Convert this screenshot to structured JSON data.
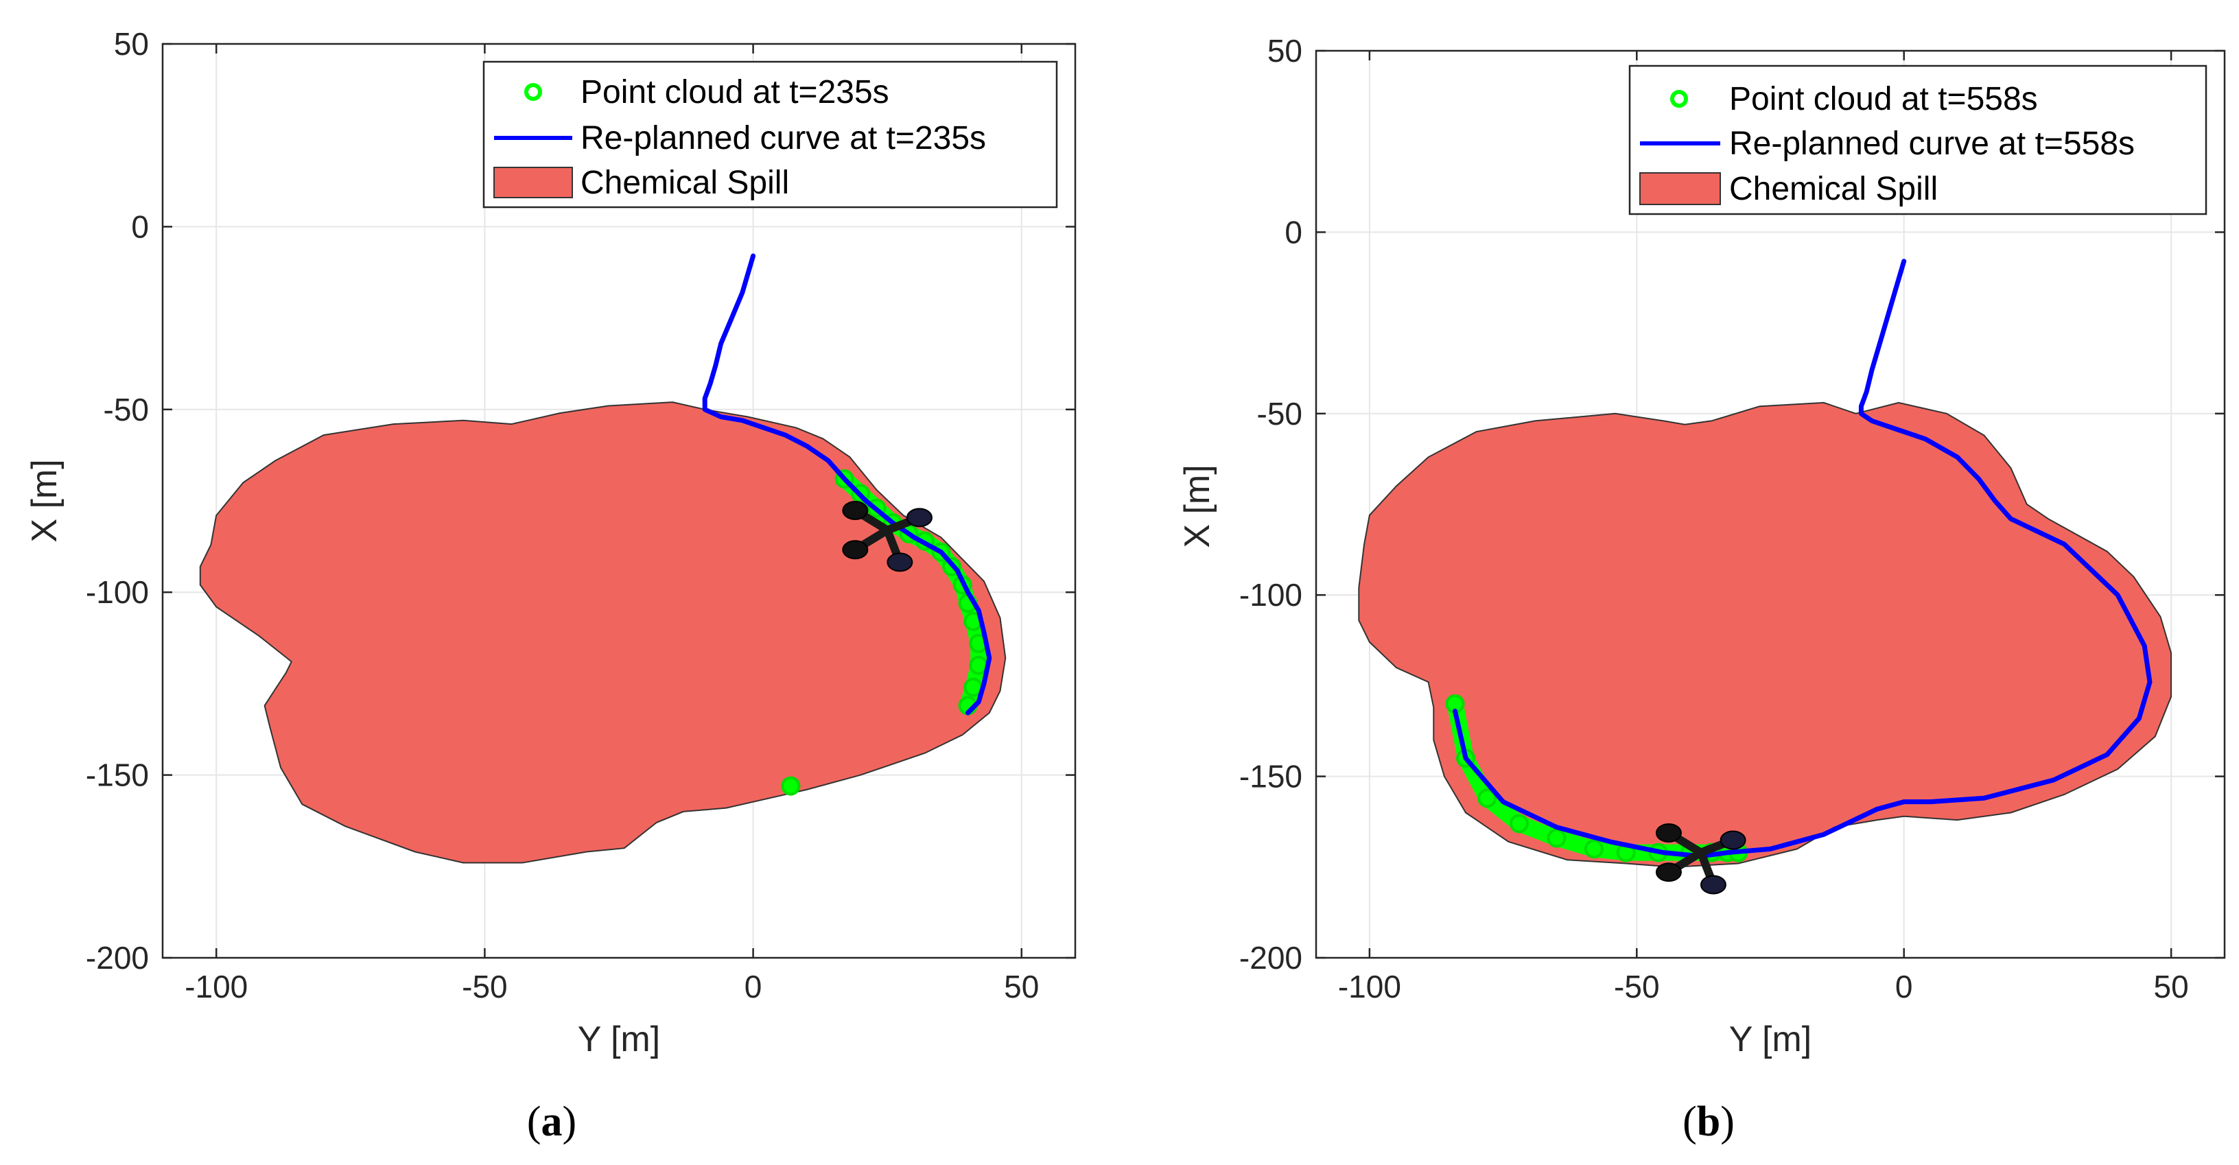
{
  "chart_data": [
    {
      "type": "line",
      "panel_label": "a",
      "xlabel": "Y [m]",
      "ylabel": "X [m]",
      "xlim": [
        -110,
        60
      ],
      "ylim": [
        -200,
        50
      ],
      "xticks": [
        -100,
        -50,
        0,
        50
      ],
      "yticks": [
        50,
        0,
        -50,
        -100,
        -150,
        -200
      ],
      "xtick_labels": [
        "-100",
        "-50",
        "0",
        "50"
      ],
      "ytick_labels": [
        "50",
        "0",
        "-50",
        "-100",
        "-150",
        "-200"
      ],
      "grid": true,
      "legend_position": "top-right",
      "legend": [
        {
          "label": "Point cloud at t=235s",
          "kind": "marker",
          "color": "#00ff00"
        },
        {
          "label": "Re-planned curve at t=235s",
          "kind": "line",
          "color": "#0000ff"
        },
        {
          "label": "Chemical Spill",
          "kind": "patch",
          "color": "#f0665e"
        }
      ],
      "spill_boundary": [
        [
          -9,
          -50
        ],
        [
          -1,
          -52
        ],
        [
          8,
          -55
        ],
        [
          13,
          -58
        ],
        [
          18,
          -63
        ],
        [
          23,
          -72
        ],
        [
          28,
          -79
        ],
        [
          35,
          -85
        ],
        [
          39,
          -91
        ],
        [
          43,
          -97
        ],
        [
          46,
          -107
        ],
        [
          47,
          -118
        ],
        [
          46,
          -127
        ],
        [
          44,
          -133
        ],
        [
          39,
          -139
        ],
        [
          32,
          -144
        ],
        [
          20,
          -150
        ],
        [
          10,
          -154
        ],
        [
          -5,
          -159
        ],
        [
          -13,
          -160
        ],
        [
          -18,
          -163
        ],
        [
          -24,
          -170
        ],
        [
          -31,
          -171
        ],
        [
          -43,
          -174
        ],
        [
          -54,
          -174
        ],
        [
          -63,
          -171
        ],
        [
          -76,
          -164
        ],
        [
          -84,
          -158
        ],
        [
          -88,
          -148
        ],
        [
          -90,
          -137
        ],
        [
          -91,
          -131
        ],
        [
          -87,
          -122
        ],
        [
          -86,
          -119
        ],
        [
          -92,
          -112
        ],
        [
          -100,
          -104
        ],
        [
          -103,
          -98
        ],
        [
          -103,
          -93
        ],
        [
          -101,
          -87
        ],
        [
          -100,
          -79
        ],
        [
          -95,
          -70
        ],
        [
          -89,
          -64
        ],
        [
          -80,
          -57
        ],
        [
          -67,
          -54
        ],
        [
          -54,
          -53
        ],
        [
          -45,
          -54
        ],
        [
          -42,
          -53
        ],
        [
          -36,
          -51
        ],
        [
          -27,
          -49
        ],
        [
          -15,
          -48
        ]
      ],
      "curve": {
        "x": [
          0,
          -2,
          -4,
          -6,
          -7,
          -8,
          -9,
          -9,
          -6,
          -2,
          2,
          6,
          10,
          14,
          17,
          21,
          26,
          30,
          35,
          38,
          40,
          42,
          43,
          44,
          43,
          42,
          40
        ],
        "y": [
          -8,
          -18,
          -25,
          -32,
          -38,
          -43,
          -47,
          -50,
          -52,
          -53,
          -55,
          -57,
          -60,
          -64,
          -69,
          -75,
          -81,
          -85,
          -89,
          -94,
          -100,
          -105,
          -111,
          -118,
          -125,
          -130,
          -133
        ]
      },
      "points": {
        "x": [
          17,
          20,
          23,
          26,
          29,
          32,
          35,
          37,
          39,
          40,
          41,
          42,
          42,
          41,
          40,
          7
        ],
        "y": [
          -69,
          -73,
          -77,
          -81,
          -84,
          -86,
          -89,
          -93,
          -98,
          -103,
          -108,
          -114,
          -120,
          -126,
          -131,
          -153
        ]
      },
      "drone": {
        "x": 25,
        "y": -83
      }
    },
    {
      "type": "line",
      "panel_label": "b",
      "xlabel": "Y [m]",
      "ylabel": "X [m]",
      "xlim": [
        -110,
        60
      ],
      "ylim": [
        -200,
        50
      ],
      "xticks": [
        -100,
        -50,
        0,
        50
      ],
      "yticks": [
        50,
        0,
        -50,
        -100,
        -150,
        -200
      ],
      "xtick_labels": [
        "-100",
        "-50",
        "0",
        "50"
      ],
      "ytick_labels": [
        "50",
        "0",
        "-50",
        "-100",
        "-150",
        "-200"
      ],
      "grid": true,
      "legend_position": "top-right",
      "legend": [
        {
          "label": "Point cloud at t=558s",
          "kind": "marker",
          "color": "#00ff00"
        },
        {
          "label": "Re-planned curve at t=558s",
          "kind": "line",
          "color": "#0000ff"
        },
        {
          "label": "Chemical Spill",
          "kind": "patch",
          "color": "#f0665e"
        }
      ],
      "spill_boundary": [
        [
          -9,
          -50
        ],
        [
          -1,
          -47
        ],
        [
          8,
          -50
        ],
        [
          15,
          -56
        ],
        [
          20,
          -65
        ],
        [
          23,
          -75
        ],
        [
          27,
          -79
        ],
        [
          38,
          -88
        ],
        [
          43,
          -95
        ],
        [
          48,
          -106
        ],
        [
          50,
          -116
        ],
        [
          50,
          -128
        ],
        [
          47,
          -139
        ],
        [
          40,
          -148
        ],
        [
          30,
          -155
        ],
        [
          20,
          -160
        ],
        [
          10,
          -162
        ],
        [
          0,
          -161
        ],
        [
          -5,
          -162
        ],
        [
          -13,
          -164
        ],
        [
          -20,
          -170
        ],
        [
          -31,
          -174
        ],
        [
          -43,
          -175
        ],
        [
          -52,
          -174
        ],
        [
          -63,
          -173
        ],
        [
          -74,
          -168
        ],
        [
          -82,
          -160
        ],
        [
          -86,
          -150
        ],
        [
          -88,
          -140
        ],
        [
          -88,
          -131
        ],
        [
          -89,
          -124
        ],
        [
          -95,
          -120
        ],
        [
          -100,
          -113
        ],
        [
          -102,
          -107
        ],
        [
          -102,
          -98
        ],
        [
          -101,
          -86
        ],
        [
          -100,
          -78
        ],
        [
          -95,
          -70
        ],
        [
          -89,
          -62
        ],
        [
          -80,
          -55
        ],
        [
          -69,
          -52
        ],
        [
          -54,
          -50
        ],
        [
          -45,
          -52
        ],
        [
          -41,
          -53
        ],
        [
          -36,
          -52
        ],
        [
          -27,
          -48
        ],
        [
          -15,
          -47
        ]
      ],
      "curve": {
        "x": [
          0,
          -2,
          -4,
          -6,
          -7,
          -8,
          -8,
          -6,
          -2,
          4,
          10,
          14,
          17,
          20,
          30,
          40,
          45,
          46,
          44,
          38,
          28,
          15,
          5,
          0,
          -5,
          -15,
          -25,
          -33,
          -38,
          -45,
          -55,
          -65,
          -75,
          -82,
          -84
        ],
        "y": [
          -8,
          -18,
          -28,
          -38,
          -44,
          -48,
          -50,
          -52,
          -54,
          -57,
          -62,
          -68,
          -74,
          -79,
          -86,
          -100,
          -114,
          -124,
          -134,
          -144,
          -151,
          -156,
          -157,
          -157,
          -159,
          -166,
          -170,
          -171,
          -172,
          -171,
          -168,
          -164,
          -157,
          -145,
          -132
        ]
      },
      "points": {
        "x": [
          -84,
          -82,
          -78,
          -72,
          -65,
          -58,
          -52,
          -46,
          -40,
          -36,
          -33,
          -31
        ],
        "y": [
          -130,
          -145,
          -156,
          -163,
          -167,
          -170,
          -171,
          -171,
          -171,
          -171,
          -171,
          -171
        ]
      },
      "drone": {
        "x": -38,
        "y": -171
      }
    }
  ]
}
